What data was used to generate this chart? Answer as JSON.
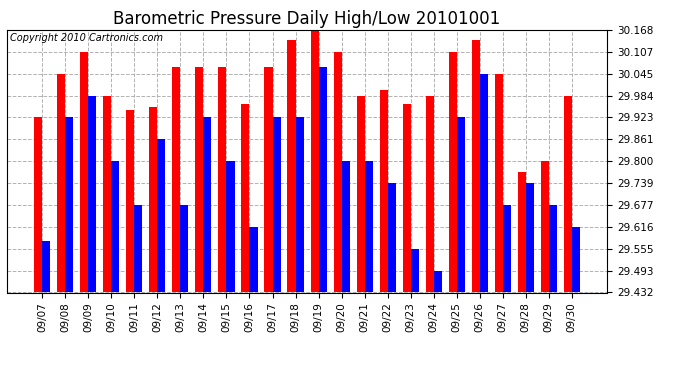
{
  "title": "Barometric Pressure Daily High/Low 20101001",
  "copyright": "Copyright 2010 Cartronics.com",
  "dates": [
    "09/07",
    "09/08",
    "09/09",
    "09/10",
    "09/11",
    "09/12",
    "09/13",
    "09/14",
    "09/15",
    "09/16",
    "09/17",
    "09/18",
    "09/19",
    "09/20",
    "09/21",
    "09/22",
    "09/23",
    "09/24",
    "09/25",
    "09/26",
    "09/27",
    "09/28",
    "09/29",
    "09/30"
  ],
  "highs": [
    29.923,
    30.045,
    30.107,
    29.984,
    29.945,
    29.952,
    30.065,
    30.065,
    30.065,
    29.96,
    30.065,
    30.14,
    30.168,
    30.107,
    29.984,
    30.0,
    29.96,
    29.984,
    30.107,
    30.14,
    30.045,
    29.77,
    29.8,
    29.984
  ],
  "lows": [
    29.575,
    29.923,
    29.984,
    29.8,
    29.677,
    29.861,
    29.677,
    29.923,
    29.8,
    29.616,
    29.923,
    29.923,
    30.065,
    29.8,
    29.8,
    29.739,
    29.555,
    29.493,
    29.923,
    30.045,
    29.677,
    29.739,
    29.677,
    29.616
  ],
  "high_color": "#ff0000",
  "low_color": "#0000ff",
  "bg_color": "#ffffff",
  "grid_color": "#aaaaaa",
  "ymin": 29.432,
  "ymax": 30.168,
  "yticks": [
    29.432,
    29.493,
    29.555,
    29.616,
    29.677,
    29.739,
    29.8,
    29.861,
    29.923,
    29.984,
    30.045,
    30.107,
    30.168
  ],
  "title_fontsize": 12,
  "copyright_fontsize": 7,
  "tick_fontsize": 7.5,
  "bar_width": 0.35
}
